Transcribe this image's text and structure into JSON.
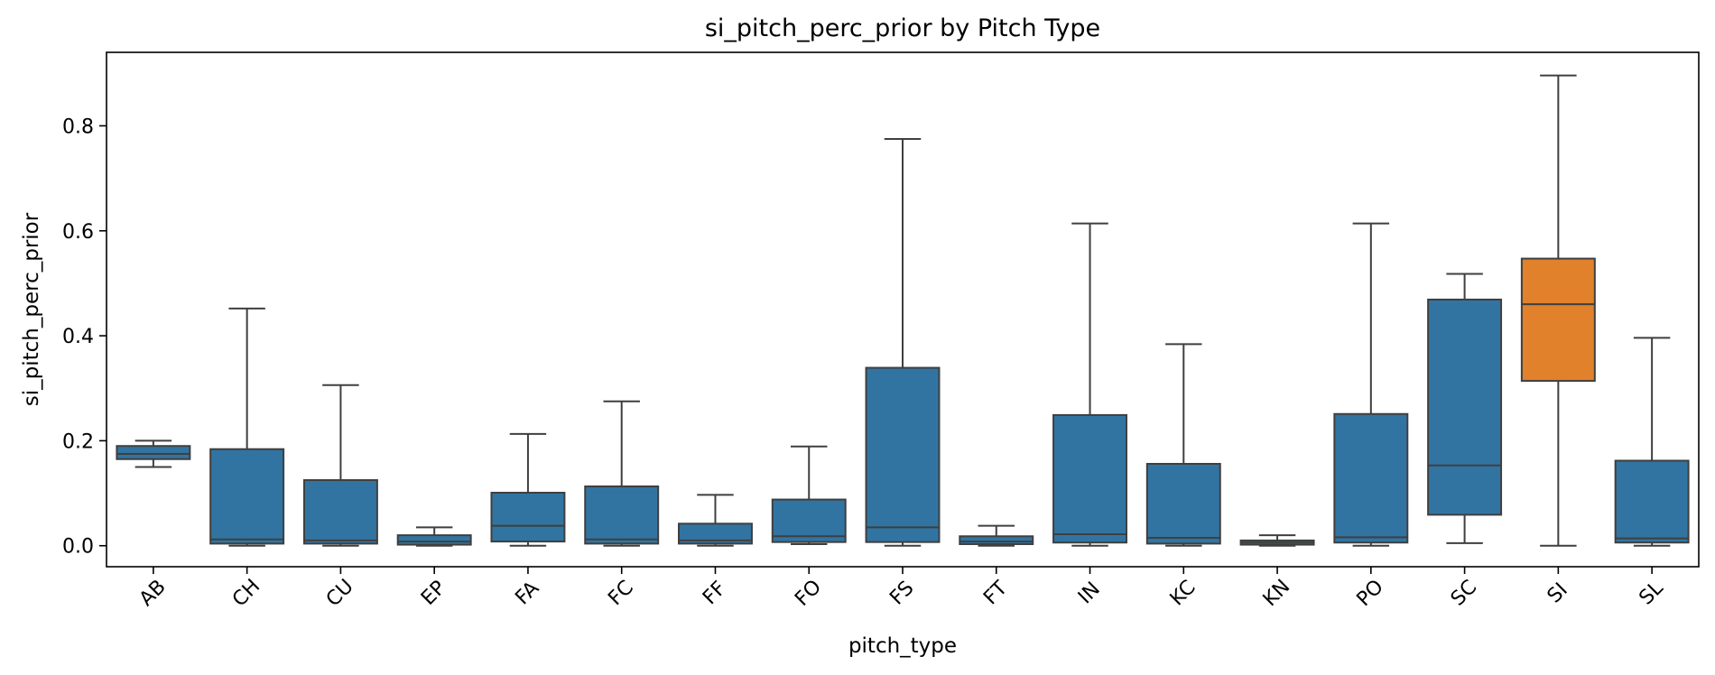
{
  "chart_data": {
    "type": "box",
    "title": "si_pitch_perc_prior by Pitch Type",
    "xlabel": "pitch_type",
    "ylabel": "si_pitch_perc_prior",
    "ylim": [
      -0.04,
      0.94
    ],
    "yticks": [
      0.0,
      0.2,
      0.4,
      0.6,
      0.8
    ],
    "ytick_labels": [
      "0.0",
      "0.2",
      "0.4",
      "0.6",
      "0.8"
    ],
    "grid": false,
    "legend": "none",
    "categories": [
      "AB",
      "CH",
      "CU",
      "EP",
      "FA",
      "FC",
      "FF",
      "FO",
      "FS",
      "FT",
      "IN",
      "KC",
      "KN",
      "PO",
      "SC",
      "SI",
      "SL"
    ],
    "boxes": [
      {
        "category": "AB",
        "whislo": 0.15,
        "q1": 0.165,
        "median": 0.175,
        "q3": 0.19,
        "whishi": 0.2
      },
      {
        "category": "CH",
        "whislo": 0.0,
        "q1": 0.004,
        "median": 0.012,
        "q3": 0.184,
        "whishi": 0.452
      },
      {
        "category": "CU",
        "whislo": 0.0,
        "q1": 0.004,
        "median": 0.01,
        "q3": 0.125,
        "whishi": 0.306
      },
      {
        "category": "EP",
        "whislo": 0.0,
        "q1": 0.002,
        "median": 0.008,
        "q3": 0.02,
        "whishi": 0.035
      },
      {
        "category": "FA",
        "whislo": 0.0,
        "q1": 0.008,
        "median": 0.038,
        "q3": 0.101,
        "whishi": 0.213
      },
      {
        "category": "FC",
        "whislo": 0.0,
        "q1": 0.004,
        "median": 0.012,
        "q3": 0.113,
        "whishi": 0.275
      },
      {
        "category": "FF",
        "whislo": 0.0,
        "q1": 0.004,
        "median": 0.01,
        "q3": 0.042,
        "whishi": 0.097
      },
      {
        "category": "FO",
        "whislo": 0.003,
        "q1": 0.007,
        "median": 0.018,
        "q3": 0.088,
        "whishi": 0.189
      },
      {
        "category": "FS",
        "whislo": 0.0,
        "q1": 0.007,
        "median": 0.035,
        "q3": 0.339,
        "whishi": 0.775
      },
      {
        "category": "FT",
        "whislo": 0.0,
        "q1": 0.003,
        "median": 0.008,
        "q3": 0.018,
        "whishi": 0.038
      },
      {
        "category": "IN",
        "whislo": 0.0,
        "q1": 0.006,
        "median": 0.022,
        "q3": 0.249,
        "whishi": 0.614
      },
      {
        "category": "KC",
        "whislo": 0.0,
        "q1": 0.004,
        "median": 0.015,
        "q3": 0.156,
        "whishi": 0.384
      },
      {
        "category": "KN",
        "whislo": 0.0,
        "q1": 0.002,
        "median": 0.006,
        "q3": 0.01,
        "whishi": 0.02
      },
      {
        "category": "PO",
        "whislo": 0.0,
        "q1": 0.006,
        "median": 0.016,
        "q3": 0.251,
        "whishi": 0.614
      },
      {
        "category": "SC",
        "whislo": 0.005,
        "q1": 0.059,
        "median": 0.153,
        "q3": 0.469,
        "whishi": 0.518
      },
      {
        "category": "SI",
        "whislo": 0.0,
        "q1": 0.314,
        "median": 0.46,
        "q3": 0.547,
        "whishi": 0.896
      },
      {
        "category": "SL",
        "whislo": 0.0,
        "q1": 0.006,
        "median": 0.014,
        "q3": 0.162,
        "whishi": 0.396
      }
    ],
    "colors": {
      "default": "#3274a1",
      "highlight": "#e1812c",
      "line": "#3f3f3f"
    },
    "highlight_category": "SI"
  }
}
